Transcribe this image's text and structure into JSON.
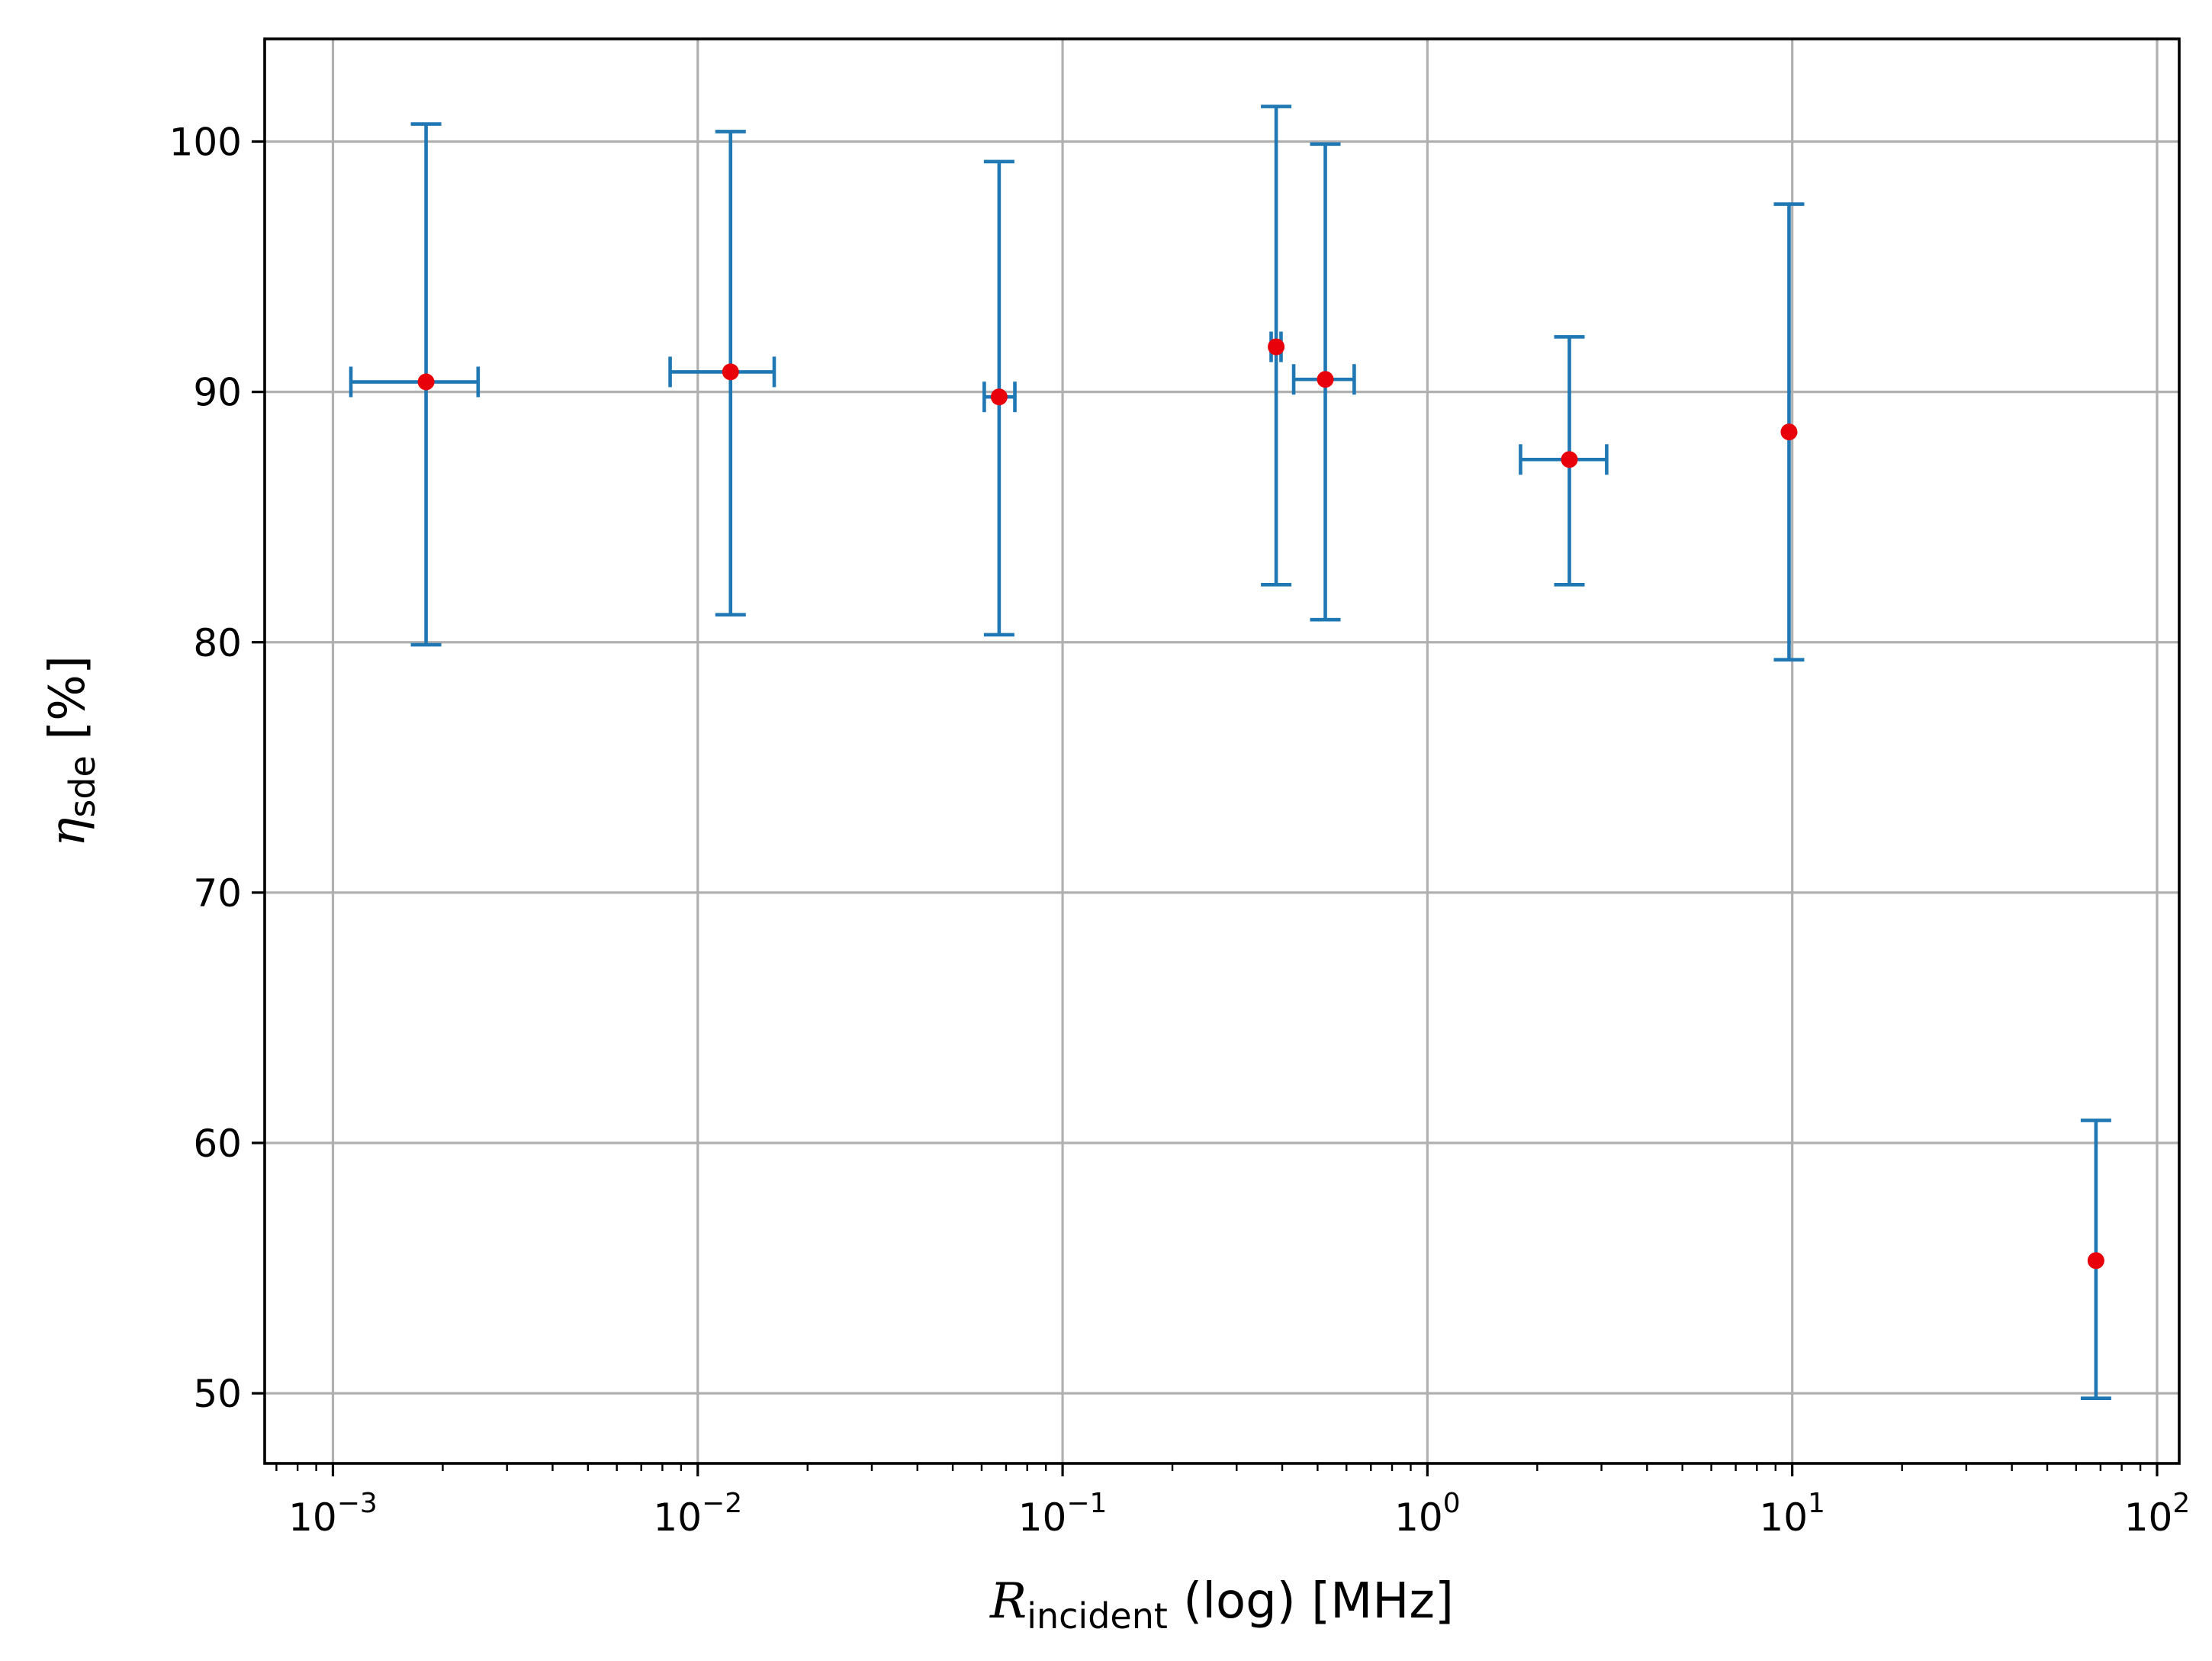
{
  "chart_data": {
    "type": "scatter",
    "title": "",
    "xlabel": {
      "symbol": "R",
      "subscript": "incident",
      "rest": " (log) [MHz]"
    },
    "ylabel": {
      "symbol": "η",
      "subscript": "sde",
      "rest": " [%]"
    },
    "x_scale": "log",
    "xlim": [
      0.00065,
      115
    ],
    "ylim": [
      47.2,
      104.1
    ],
    "grid": true,
    "legend": "none",
    "x_ticks": [
      {
        "value": 0.001,
        "base": "10",
        "exp": "−3"
      },
      {
        "value": 0.01,
        "base": "10",
        "exp": "−2"
      },
      {
        "value": 0.1,
        "base": "10",
        "exp": "−1"
      },
      {
        "value": 1,
        "base": "10",
        "exp": "0"
      },
      {
        "value": 10,
        "base": "10",
        "exp": "1"
      },
      {
        "value": 100,
        "base": "10",
        "exp": "2"
      }
    ],
    "y_ticks": [
      50,
      60,
      70,
      80,
      90,
      100
    ],
    "colors": {
      "errorbar": "#1f77b4",
      "marker": "#e8000b",
      "grid": "#b0b0b0"
    },
    "points": [
      {
        "x": 0.0018,
        "y": 90.4,
        "x_low": 0.00112,
        "x_high": 0.0025,
        "y_low": 79.9,
        "y_high": 100.7
      },
      {
        "x": 0.0123,
        "y": 90.8,
        "x_low": 0.0084,
        "x_high": 0.0162,
        "y_low": 81.1,
        "y_high": 100.4
      },
      {
        "x": 0.067,
        "y": 89.8,
        "x_low": 0.061,
        "x_high": 0.074,
        "y_low": 80.3,
        "y_high": 99.2
      },
      {
        "x": 0.385,
        "y": 91.8,
        "x_low": 0.373,
        "x_high": 0.397,
        "y_low": 82.3,
        "y_high": 101.4
      },
      {
        "x": 0.525,
        "y": 90.5,
        "x_low": 0.43,
        "x_high": 0.63,
        "y_low": 80.9,
        "y_high": 99.9
      },
      {
        "x": 2.45,
        "y": 87.3,
        "x_low": 1.8,
        "x_high": 3.1,
        "y_low": 82.3,
        "y_high": 92.2
      },
      {
        "x": 9.8,
        "y": 88.4,
        "y_low": 79.3,
        "y_high": 97.5
      },
      {
        "x": 68,
        "y": 55.3,
        "y_low": 49.8,
        "y_high": 60.9
      }
    ]
  }
}
